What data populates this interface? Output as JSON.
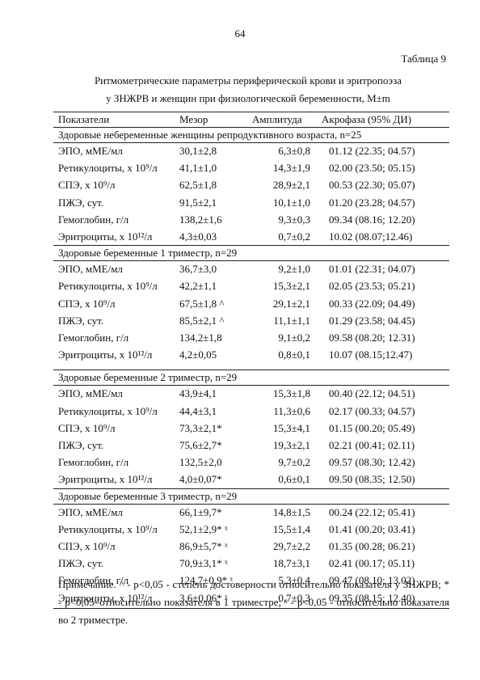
{
  "page_number": "64",
  "table_label": "Таблица 9",
  "title_lines": [
    "Ритмометрические параметры периферической крови и  эритропоэза",
    "у ЗНЖРВ и женщин при физиологической   беременности,   M±m"
  ],
  "table": {
    "header": [
      "Показатели",
      "Мезор",
      "Амплитуда",
      "Акрофаза (95% ДИ)"
    ],
    "groups": [
      {
        "title": "Здоровые небеременные женщины репродуктивного возраста, n=25",
        "rows": [
          [
            "ЭПО, мМЕ/мл",
            "30,1±2,8",
            "6,3±0,8",
            "01.12 (22.35; 04.57)"
          ],
          [
            "Ретикулоциты, х 10⁹/л",
            "41,1±1,0",
            "14,3±1,9",
            "02.00 (23.50; 05.15)"
          ],
          [
            "СПЭ, х 10⁹/л",
            "62,5±1,8",
            "28,9±2,1",
            "00.53 (22.30; 05.07)"
          ],
          [
            "ПЖЭ, сут.",
            "91,5±2,1",
            "10,1±1,0",
            "01.20 (23.28; 04.57)"
          ],
          [
            "Гемоглобин, г/л",
            "138,2±1,6",
            "9,3±0,3",
            "09.34 (08.16; 12.20)"
          ],
          [
            "Эритроциты, х 10¹²/л",
            "4,3±0,03",
            "0,7±0,2",
            "10.02 (08.07;12.46)"
          ]
        ]
      },
      {
        "title": "Здоровые беременные  1 триместр,  n=29",
        "rows": [
          [
            "ЭПО, мМЕ/мл",
            "36,7±3,0",
            "9,2±1,0",
            "01.01 (22.31; 04.07)"
          ],
          [
            "Ретикулоциты, х 10⁹/л",
            "42,2±1,1",
            "15,3±2,1",
            "02.05 (23.53; 05.21)"
          ],
          [
            "СПЭ, х 10⁹/л",
            "67,5±1,8 ^",
            "29,1±2,1",
            "00.33 (22.09; 04.49)"
          ],
          [
            "ПЖЭ, сут.",
            "85,5±2,1 ^",
            "11,1±1,1",
            "01.29 (23.58; 04.45)"
          ],
          [
            "Гемоглобин, г/л",
            "134,2±1,8",
            "9,1±0,2",
            "09.58 (08.20; 12.31)"
          ],
          [
            "Эритроциты, х 10¹²/л",
            "4,2±0,05",
            "0,8±0,1",
            "10.07 (08.15;12.47)"
          ]
        ]
      },
      {
        "title": "Здоровые беременные   2 триместр, n=29",
        "rows": [
          [
            "ЭПО, мМЕ/мл",
            "43,9±4,1",
            "15,3±1,8",
            "00.40 (22.12; 04.51)"
          ],
          [
            "Ретикулоциты, х 10⁹/л",
            "44,4±3,1",
            "11,3±0,6",
            "02.17 (00.33; 04.57)"
          ],
          [
            "СПЭ, х 10⁹/л",
            "73,3±2,1*",
            "15,3±4,1",
            "01.15 (00.20; 05.49)"
          ],
          [
            "ПЖЭ, сут.",
            "75,6±2,7*",
            "19,3±2,1",
            "02.21 (00.41; 02.11)"
          ],
          [
            "Гемоглобин, г/л",
            "132,5±2,0",
            "9,7±0,2",
            "09.57 (08.30; 12.42)"
          ],
          [
            "Эритроциты, х 10¹²/л",
            "4,0±0,07*",
            "0,6±0,1",
            "09.50 (08.35; 12.50)"
          ]
        ]
      },
      {
        "title": "Здоровые беременные   3 триместр, n=29",
        "rows": [
          [
            "ЭПО, мМЕ/мл",
            "66,1±9,7*",
            "14,8±1,5",
            "00.24 (22.12; 05.41)"
          ],
          [
            "Ретикулоциты, х 10⁹/л",
            "52,1±2,9* ˣ",
            "15,5±1,4",
            "01.41 (00.20; 03.41)"
          ],
          [
            "СПЭ, х 10⁹/л",
            "86,9±5,7* ˣ",
            "29,7±2,2",
            "01.35 (00.28; 06.21)"
          ],
          [
            "ПЖЭ, сут.",
            "70,9±3,1* ˣ",
            "18,7±3,1",
            "02.41 (00.17; 05.11)"
          ],
          [
            "Гемоглобин, г/л",
            "124,7±0,9* ˣ",
            "5,3±0,4",
            "09.47 (08.10; 13.02)"
          ],
          [
            "Эритроциты, х 10¹²/л",
            "3,6±0,06* ˣ",
            "0,7±0,3",
            "09.35 (08.15; 12.40)"
          ]
        ]
      }
    ]
  },
  "note": "Примечание. ^ - p<0,05 - степень достоверности относительно показателя у ЗНЖРВ; * - p<0,05–относительно показателя в 1 триместре; ˣ - p<0,05 - относительно показателя во 2 триместре."
}
